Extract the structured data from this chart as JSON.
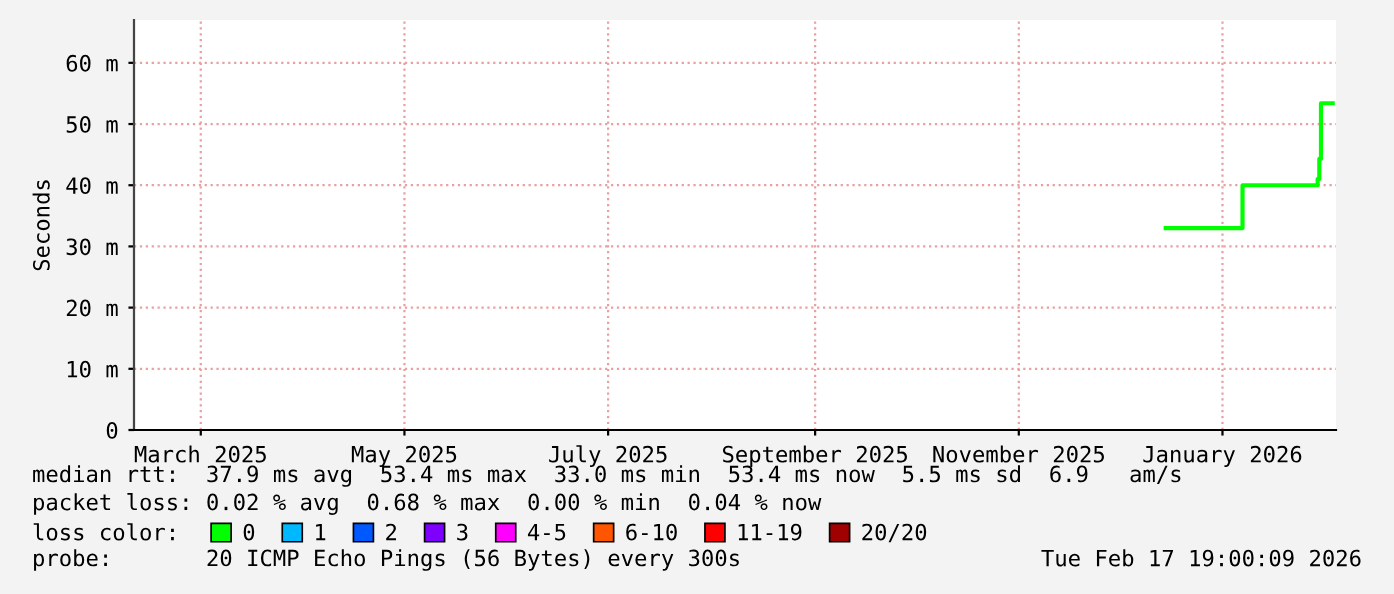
{
  "chart_data": {
    "type": "step",
    "ylabel": "Seconds",
    "x": [
      "2025-12-29",
      "2026-01-21",
      "2026-02-12",
      "2026-02-12T12:00",
      "2026-02-13",
      "2026-02-13T12:00",
      "2026-02-17"
    ],
    "series": [
      {
        "name": "0",
        "color": "#00ff00",
        "values": [
          33.0,
          40.0,
          40.0,
          41.0,
          44.3,
          53.4,
          53.4
        ]
      },
      {
        "name": "1",
        "color": "#00b8ff",
        "values": [
          null,
          null,
          null,
          null,
          null,
          null,
          null
        ]
      },
      {
        "name": "2",
        "color": "#0059ff",
        "values": [
          null,
          null,
          null,
          null,
          null,
          null,
          null
        ]
      },
      {
        "name": "3",
        "color": "#7e00ff",
        "values": [
          null,
          null,
          null,
          null,
          null,
          null,
          null
        ]
      },
      {
        "name": "4-5",
        "color": "#ff00ff",
        "values": [
          null,
          null,
          null,
          null,
          null,
          null,
          null
        ]
      },
      {
        "name": "6-10",
        "color": "#ff5500",
        "values": [
          null,
          null,
          null,
          null,
          null,
          null,
          null
        ]
      },
      {
        "name": "11-19",
        "color": "#ff0000",
        "values": [
          null,
          null,
          null,
          null,
          null,
          null,
          null
        ]
      },
      {
        "name": "20/20",
        "color": "#a10000",
        "values": [
          null,
          null,
          null,
          null,
          null,
          null,
          null
        ]
      }
    ],
    "legend_title": "loss color:",
    "legend": "bottom",
    "xlim": [
      "2025-02-23",
      "2026-02-18"
    ],
    "xticks": [
      {
        "value": "2025-03-15",
        "label": "March 2025"
      },
      {
        "value": "2025-05-15",
        "label": "May 2025"
      },
      {
        "value": "2025-07-15",
        "label": "July 2025"
      },
      {
        "value": "2025-09-15",
        "label": "September 2025"
      },
      {
        "value": "2025-11-15",
        "label": "November 2025"
      },
      {
        "value": "2026-01-15",
        "label": "January 2026"
      }
    ],
    "ylim": [
      0,
      67
    ],
    "yticks": [
      0,
      {
        "value": 10,
        "label": "10 m"
      },
      {
        "value": 20,
        "label": "20 m"
      },
      {
        "value": 30,
        "label": "30 m"
      },
      {
        "value": 40,
        "label": "40 m"
      },
      {
        "value": 50,
        "label": "50 m"
      },
      {
        "value": 60,
        "label": "60 m"
      }
    ],
    "grid": true,
    "annotations": [
      "median rtt:  37.9 ms avg  53.4 ms max  33.0 ms min  53.4 ms now  5.5 ms sd  6.9   am/s",
      "packet loss: 0.02 % avg  0.68 % max  0.00 % min  0.04 % now",
      "probe:       20 ICMP Echo Pings (56 Bytes) every 300s",
      "Tue Feb 17 19:00:09 2026"
    ]
  }
}
